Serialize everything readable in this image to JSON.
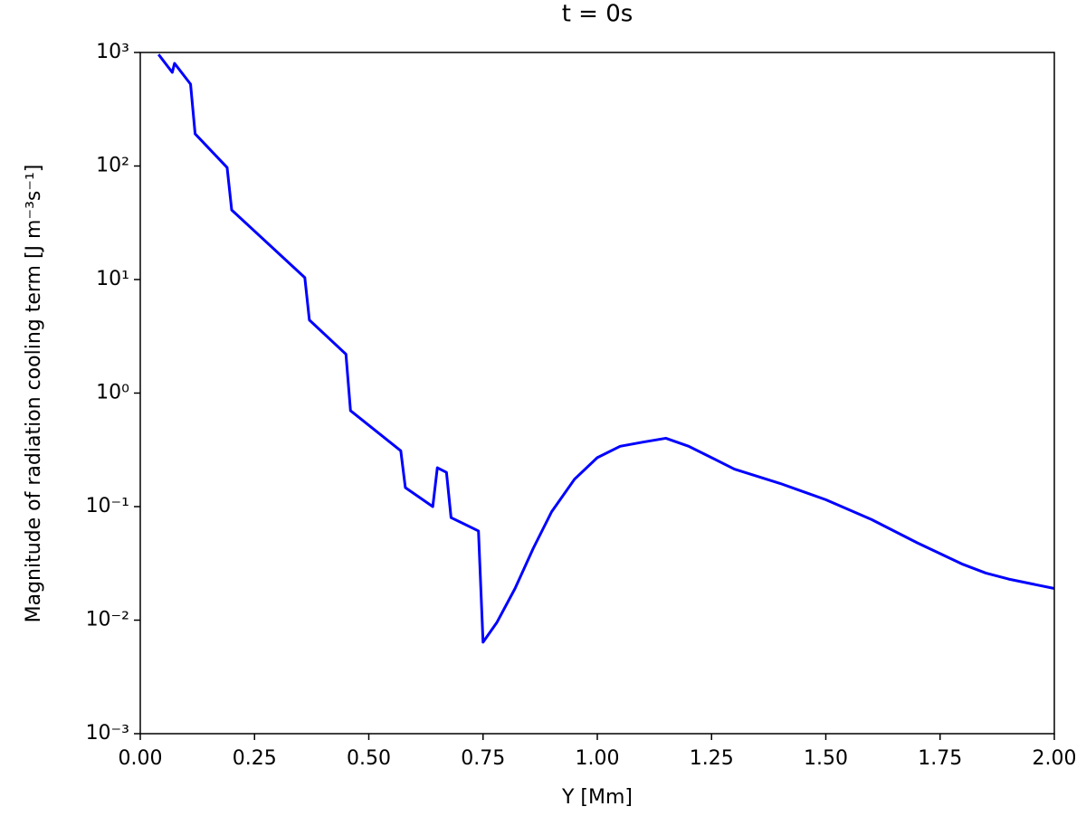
{
  "chart_data": {
    "type": "line",
    "title": "t = 0s",
    "x_label": "Y [Mm]",
    "y_label": "Magnitude of radiation cooling term [J m⁻³s⁻¹]",
    "log_y": true,
    "x": [
      0.04,
      0.07,
      0.075,
      0.11,
      0.12,
      0.19,
      0.2,
      0.36,
      0.37,
      0.45,
      0.46,
      0.57,
      0.58,
      0.64,
      0.65,
      0.67,
      0.68,
      0.74,
      0.75,
      0.78,
      0.82,
      0.86,
      0.9,
      0.95,
      1.0,
      1.05,
      1.1,
      1.15,
      1.2,
      1.25,
      1.3,
      1.4,
      1.5,
      1.6,
      1.7,
      1.8,
      1.85,
      1.9,
      2.0
    ],
    "series": [
      {
        "name": "radiation cooling",
        "color": "#0000ff",
        "values": [
          960,
          668,
          802,
          526,
          192,
          97,
          41,
          10.4,
          4.4,
          2.2,
          0.7,
          0.31,
          0.147,
          0.1,
          0.22,
          0.2,
          0.08,
          0.061,
          0.0064,
          0.0095,
          0.019,
          0.043,
          0.09,
          0.174,
          0.27,
          0.34,
          0.37,
          0.4,
          0.34,
          0.27,
          0.214,
          0.16,
          0.115,
          0.077,
          0.048,
          0.031,
          0.026,
          0.023,
          0.019
        ]
      }
    ],
    "xlim": [
      0,
      2
    ],
    "xticks": [
      {
        "value": 0,
        "label": "0.00"
      },
      {
        "value": 0.25,
        "label": "0.25"
      },
      {
        "value": 0.5,
        "label": "0.50"
      },
      {
        "value": 0.75,
        "label": "0.75"
      },
      {
        "value": 1,
        "label": "1.00"
      },
      {
        "value": 1.25,
        "label": "1.25"
      },
      {
        "value": 1.5,
        "label": "1.50"
      },
      {
        "value": 1.75,
        "label": "1.75"
      },
      {
        "value": 2,
        "label": "2.00"
      }
    ],
    "ylim": [
      0.001,
      1000
    ],
    "yticks": [
      {
        "value": 0.001,
        "label": "10⁻³"
      },
      {
        "value": 0.01,
        "label": "10⁻²"
      },
      {
        "value": 0.1,
        "label": "10⁻¹"
      },
      {
        "value": 1,
        "label": "10⁰"
      },
      {
        "value": 10,
        "label": "10¹"
      },
      {
        "value": 100,
        "label": "10²"
      },
      {
        "value": 1000,
        "label": "10³"
      }
    ]
  }
}
